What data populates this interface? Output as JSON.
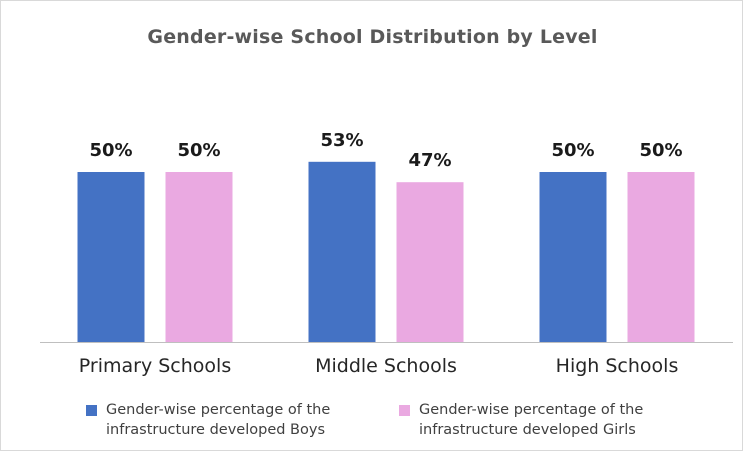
{
  "chart_data": {
    "type": "bar",
    "title": "Gender-wise School Distribution by Level",
    "categories": [
      "Primary Schools",
      "Middle Schools",
      "High Schools"
    ],
    "series": [
      {
        "name": "Gender-wise percentage of the infrastructure developed Boys",
        "legend_lines": [
          "Gender-wise percentage of the",
          "infrastructure developed Boys"
        ],
        "color": "#4472c4",
        "values": [
          50,
          53,
          50
        ],
        "labels": [
          "50%",
          "53%",
          "50%"
        ]
      },
      {
        "name": "Gender-wise percentage of the infrastructure developed Girls",
        "legend_lines": [
          "Gender-wise percentage of the",
          "infrastructure developed Girls"
        ],
        "color": "#eaa9e1",
        "values": [
          50,
          47,
          50
        ],
        "labels": [
          "50%",
          "47%",
          "50%"
        ]
      }
    ],
    "ylim": [
      0,
      60
    ],
    "grid": false,
    "legend_position": "bottom"
  }
}
